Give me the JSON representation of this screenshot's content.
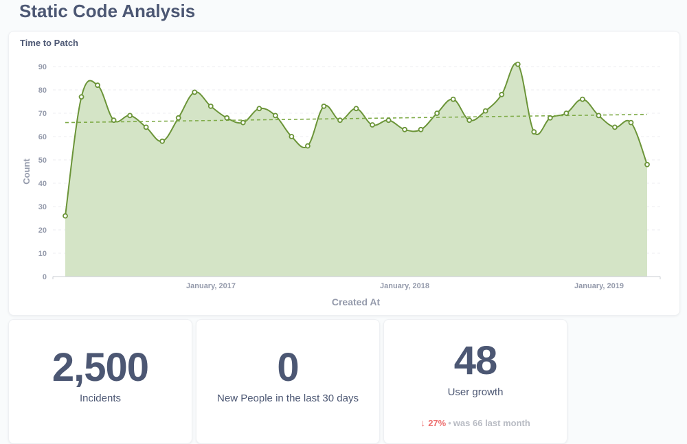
{
  "dashboard": {
    "title": "Static Code Analysis"
  },
  "chart_card": {
    "title": "Time to Patch"
  },
  "chart_data": {
    "type": "area",
    "title": "Time to Patch",
    "xlabel": "Created At",
    "ylabel": "Count",
    "ylim": [
      0,
      90
    ],
    "y_ticks": [
      0,
      10,
      20,
      30,
      40,
      50,
      60,
      70,
      80,
      90
    ],
    "x_tick_labels": [
      "January, 2017",
      "January, 2018",
      "January, 2019"
    ],
    "grid": true,
    "trend_line": {
      "style": "dashed",
      "start": 66,
      "end": 69.5
    },
    "color": "#6b9438",
    "fill_color": "#d4e4c6",
    "series": [
      {
        "values": [
          26,
          77,
          82,
          67,
          69,
          64,
          58,
          68,
          79,
          73,
          68,
          66,
          72,
          69,
          60,
          56,
          73,
          67,
          72,
          65,
          67,
          63,
          63,
          70,
          76,
          67,
          71,
          78,
          91,
          62,
          68,
          70,
          76,
          69,
          64,
          66,
          48
        ]
      }
    ]
  },
  "scalars": [
    {
      "value": "2,500",
      "label": "Incidents"
    },
    {
      "value": "0",
      "label": "New People in the last 30 days"
    },
    {
      "value": "48",
      "label": "User growth",
      "comparison": {
        "arrow": "↓",
        "percent": "27%",
        "separator": "•",
        "was_text": "was 66",
        "period": "last month"
      }
    }
  ]
}
